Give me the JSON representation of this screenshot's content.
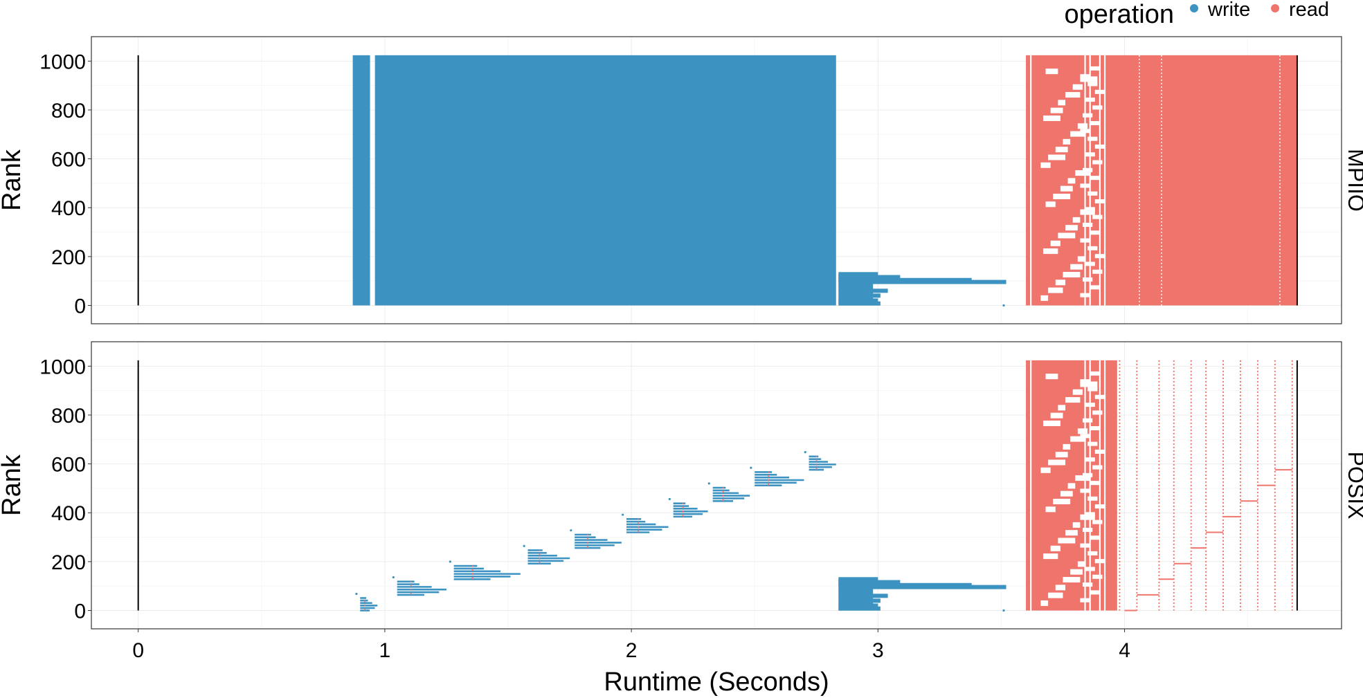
{
  "legend": {
    "title": "operation",
    "items": [
      {
        "label": "write",
        "color": "#3c93c2"
      },
      {
        "label": "read",
        "color": "#ef746c"
      }
    ]
  },
  "chart_data": {
    "type": "scatter",
    "description_free": true,
    "xlabel": "Runtime (Seconds)",
    "ylabel": "Rank",
    "xlim": [
      -0.19,
      4.88
    ],
    "ylim": [
      -75,
      1100
    ],
    "x_ticks": [
      "0",
      "1",
      "2",
      "3",
      "4"
    ],
    "y_ticks": [
      "0",
      "200",
      "400",
      "600",
      "800",
      "1000"
    ],
    "grid": true,
    "legend_position": "top-right",
    "facets": [
      {
        "name": "MPIIO",
        "boundaries": [
          0,
          4.7
        ],
        "write_blocks": [
          {
            "x0": 0.87,
            "x1": 0.94,
            "y0": 0,
            "y1": 1024
          },
          {
            "x0": 0.96,
            "x1": 2.83,
            "y0": 0,
            "y1": 1024
          }
        ],
        "write_tails": [
          {
            "y": 128,
            "x1": 3.0
          },
          {
            "y": 116,
            "x1": 3.09
          },
          {
            "y": 104,
            "x1": 3.38
          },
          {
            "y": 96,
            "x1": 3.52
          },
          {
            "y": 80,
            "x1": 2.97
          },
          {
            "y": 60,
            "x1": 3.04
          },
          {
            "y": 40,
            "x1": 3.01
          },
          {
            "y": 20,
            "x1": 3.0
          },
          {
            "y": 8,
            "x1": 3.01
          }
        ],
        "read_block": {
          "x0": 3.6,
          "x1": 4.7,
          "y0": 0,
          "y1": 1024
        },
        "read_dotted_columns": [
          4.06,
          4.15,
          4.63
        ]
      },
      {
        "name": "POSIX",
        "boundaries": [
          0,
          4.7
        ],
        "write_stair_groups": [
          {
            "x0": 0.9,
            "x1": 0.97,
            "y0": 0,
            "y1": 60
          },
          {
            "x0": 1.05,
            "x1": 1.25,
            "y0": 64,
            "y1": 128
          },
          {
            "x0": 1.28,
            "x1": 1.55,
            "y0": 128,
            "y1": 192
          },
          {
            "x0": 1.58,
            "x1": 1.75,
            "y0": 192,
            "y1": 256
          },
          {
            "x0": 1.77,
            "x1": 1.96,
            "y0": 256,
            "y1": 320
          },
          {
            "x0": 1.98,
            "x1": 2.15,
            "y0": 320,
            "y1": 384
          },
          {
            "x0": 2.17,
            "x1": 2.31,
            "y0": 384,
            "y1": 448
          },
          {
            "x0": 2.33,
            "x1": 2.48,
            "y0": 448,
            "y1": 512
          },
          {
            "x0": 2.5,
            "x1": 2.7,
            "y0": 512,
            "y1": 576
          },
          {
            "x0": 2.72,
            "x1": 2.83,
            "y0": 576,
            "y1": 640
          }
        ],
        "write_tails": [
          {
            "y": 128,
            "x1": 3.0
          },
          {
            "y": 116,
            "x1": 3.09
          },
          {
            "y": 104,
            "x1": 3.38
          },
          {
            "y": 96,
            "x1": 3.52
          },
          {
            "y": 80,
            "x1": 2.97
          },
          {
            "y": 60,
            "x1": 3.04
          },
          {
            "y": 40,
            "x1": 3.01
          },
          {
            "y": 20,
            "x1": 3.0
          },
          {
            "y": 8,
            "x1": 3.01
          }
        ],
        "read_block": {
          "x0": 3.6,
          "x1": 3.97,
          "y0": 0,
          "y1": 1024
        },
        "read_dotted_columns": [
          3.98,
          4.05,
          4.14,
          4.2,
          4.27,
          4.33,
          4.4,
          4.47,
          4.54,
          4.61,
          4.68
        ],
        "read_stair_segments": [
          {
            "x0": 4.0,
            "x1": 4.05,
            "y": 0
          },
          {
            "x0": 4.05,
            "x1": 4.14,
            "y": 64
          },
          {
            "x0": 4.14,
            "x1": 4.2,
            "y": 128
          },
          {
            "x0": 4.2,
            "x1": 4.27,
            "y": 192
          },
          {
            "x0": 4.27,
            "x1": 4.33,
            "y": 256
          },
          {
            "x0": 4.33,
            "x1": 4.4,
            "y": 320
          },
          {
            "x0": 4.4,
            "x1": 4.47,
            "y": 384
          },
          {
            "x0": 4.47,
            "x1": 4.54,
            "y": 448
          },
          {
            "x0": 4.54,
            "x1": 4.61,
            "y": 512
          },
          {
            "x0": 4.61,
            "x1": 4.68,
            "y": 576
          }
        ]
      }
    ]
  }
}
